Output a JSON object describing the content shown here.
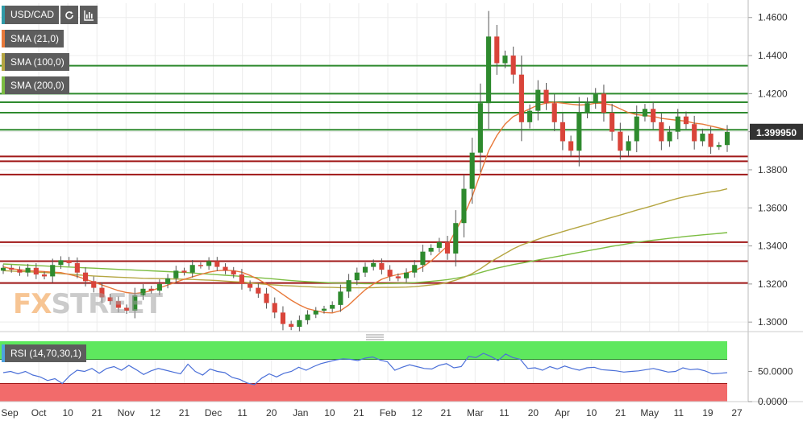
{
  "symbol": "USD/CAD",
  "indicators": [
    {
      "label": "SMA (21,0)",
      "color": "#e8793a"
    },
    {
      "label": "SMA (100,0)",
      "color": "#b5a642"
    },
    {
      "label": "SMA (200,0)",
      "color": "#7cbd42"
    }
  ],
  "rsi": {
    "label": "RSI (14,70,30,1)",
    "color": "#4a6fd8",
    "ticks": [
      "50.0000",
      "0.0000"
    ],
    "upper": 70,
    "lower": 30,
    "ylim": [
      0,
      100
    ],
    "values": [
      48,
      50,
      46,
      50,
      44,
      41,
      35,
      38,
      30,
      43,
      52,
      50,
      55,
      47,
      55,
      58,
      52,
      60,
      53,
      45,
      51,
      55,
      52,
      49,
      46,
      62,
      50,
      44,
      54,
      50,
      48,
      40,
      37,
      31,
      28,
      39,
      46,
      41,
      47,
      50,
      57,
      52,
      58,
      63,
      66,
      69,
      71,
      70,
      68,
      72,
      74,
      69,
      66,
      52,
      57,
      61,
      58,
      55,
      54,
      60,
      63,
      56,
      58,
      75,
      73,
      80,
      75,
      68,
      79,
      73,
      70,
      55,
      56,
      52,
      58,
      54,
      59,
      55,
      52,
      56,
      57,
      53,
      52,
      51,
      49,
      50,
      51,
      53,
      55,
      52,
      49,
      50,
      56,
      53,
      54,
      51,
      46,
      47,
      48
    ]
  },
  "watermark": "FXSTREET",
  "chart_data": {
    "type": "candlestick",
    "title": "USD/CAD",
    "ylim": [
      1.295,
      1.4675
    ],
    "y_ticks": [
      "1.4600",
      "1.4400",
      "1.4200",
      "1.4000",
      "1.3800",
      "1.3600",
      "1.3400",
      "1.3200",
      "1.3000"
    ],
    "x_ticks": [
      "Sep",
      "Oct",
      "10",
      "21",
      "Nov",
      "12",
      "21",
      "Dec",
      "11",
      "20",
      "Jan",
      "10",
      "21",
      "Feb",
      "12",
      "21",
      "Mar",
      "11",
      "20",
      "Apr",
      "10",
      "21",
      "May",
      "11",
      "19",
      "27"
    ],
    "current_price": "1.399950",
    "closes": [
      1.3285,
      1.3275,
      1.326,
      1.3285,
      1.325,
      1.324,
      1.33,
      1.3325,
      1.331,
      1.326,
      1.3215,
      1.318,
      1.313,
      1.311,
      1.3075,
      1.306,
      1.314,
      1.3175,
      1.3165,
      1.32,
      1.323,
      1.327,
      1.326,
      1.33,
      1.3295,
      1.332,
      1.329,
      1.327,
      1.325,
      1.32,
      1.318,
      1.315,
      1.31,
      1.305,
      1.299,
      1.2975,
      1.301,
      1.304,
      1.306,
      1.307,
      1.309,
      1.316,
      1.322,
      1.326,
      1.329,
      1.331,
      1.3275,
      1.324,
      1.323,
      1.326,
      1.33,
      1.337,
      1.339,
      1.342,
      1.336,
      1.352,
      1.37,
      1.389,
      1.415,
      1.45,
      1.436,
      1.44,
      1.43,
      1.405,
      1.411,
      1.422,
      1.415,
      1.405,
      1.395,
      1.39,
      1.41,
      1.415,
      1.42,
      1.41,
      1.4,
      1.39,
      1.395,
      1.408,
      1.412,
      1.405,
      1.395,
      1.4,
      1.408,
      1.404,
      1.395,
      1.399,
      1.392,
      1.393,
      1.3999
    ],
    "hlines": [
      {
        "price": 1.4347,
        "color": "#2e8a2e"
      },
      {
        "price": 1.42,
        "color": "#2e8a2e"
      },
      {
        "price": 1.4155,
        "color": "#2e8a2e"
      },
      {
        "price": 1.41,
        "color": "#2e8a2e"
      },
      {
        "price": 1.401,
        "color": "#2e8a2e"
      },
      {
        "price": 1.387,
        "color": "#a01818"
      },
      {
        "price": 1.3845,
        "color": "#a01818"
      },
      {
        "price": 1.3775,
        "color": "#a01818"
      },
      {
        "price": 1.342,
        "color": "#a01818"
      },
      {
        "price": 1.332,
        "color": "#a01818"
      },
      {
        "price": 1.3205,
        "color": "#a01818"
      }
    ],
    "sma21": [
      1.329,
      1.328,
      1.3275,
      1.327,
      1.3268,
      1.3265,
      1.3262,
      1.326,
      1.325,
      1.324,
      1.3225,
      1.321,
      1.3195,
      1.318,
      1.3165,
      1.3155,
      1.315,
      1.3155,
      1.3165,
      1.318,
      1.3195,
      1.321,
      1.3225,
      1.3238,
      1.325,
      1.3262,
      1.327,
      1.3272,
      1.327,
      1.3262,
      1.3245,
      1.3225,
      1.32,
      1.3175,
      1.3145,
      1.3115,
      1.309,
      1.307,
      1.306,
      1.305,
      1.3048,
      1.306,
      1.309,
      1.313,
      1.317,
      1.32,
      1.3225,
      1.324,
      1.325,
      1.3258,
      1.327,
      1.329,
      1.332,
      1.336,
      1.34,
      1.348,
      1.356,
      1.366,
      1.378,
      1.39,
      1.398,
      1.404,
      1.408,
      1.41,
      1.412,
      1.414,
      1.415,
      1.4155,
      1.415,
      1.4145,
      1.414,
      1.4142,
      1.415,
      1.4148,
      1.414,
      1.412,
      1.41,
      1.409,
      1.4085,
      1.408,
      1.407,
      1.4065,
      1.406,
      1.4055,
      1.4045,
      1.404,
      1.403,
      1.402,
      1.401
    ],
    "sma100": [
      1.327,
      1.3268,
      1.3266,
      1.3264,
      1.3262,
      1.326,
      1.3258,
      1.3255,
      1.3252,
      1.3248,
      1.3245,
      1.3242,
      1.324,
      1.3238,
      1.3236,
      1.3234,
      1.3232,
      1.323,
      1.3229,
      1.3228,
      1.3227,
      1.3226,
      1.3225,
      1.3224,
      1.3222,
      1.322,
      1.3218,
      1.3215,
      1.3212,
      1.321,
      1.3206,
      1.3202,
      1.3198,
      1.3195,
      1.3192,
      1.319,
      1.3188,
      1.3186,
      1.3184,
      1.3183,
      1.3182,
      1.3181,
      1.318,
      1.318,
      1.318,
      1.3181,
      1.3182,
      1.3182,
      1.3183,
      1.3184,
      1.3186,
      1.319,
      1.3195,
      1.32,
      1.3208,
      1.322,
      1.3235,
      1.3255,
      1.328,
      1.331,
      1.3335,
      1.336,
      1.3385,
      1.3405,
      1.342,
      1.3435,
      1.345,
      1.3462,
      1.3475,
      1.3488,
      1.35,
      1.3512,
      1.3525,
      1.3538,
      1.355,
      1.3562,
      1.3575,
      1.3588,
      1.36,
      1.3612,
      1.3625,
      1.3638,
      1.365,
      1.366,
      1.3668,
      1.3676,
      1.3684,
      1.369,
      1.37
    ],
    "sma200": [
      1.3305,
      1.3303,
      1.3301,
      1.3299,
      1.3297,
      1.3295,
      1.3293,
      1.3291,
      1.3289,
      1.3287,
      1.3285,
      1.3283,
      1.3281,
      1.3279,
      1.3277,
      1.3275,
      1.3273,
      1.3271,
      1.3269,
      1.3267,
      1.3265,
      1.3263,
      1.3261,
      1.3258,
      1.3255,
      1.3252,
      1.3249,
      1.3246,
      1.3243,
      1.324,
      1.3237,
      1.3233,
      1.323,
      1.3226,
      1.3222,
      1.3218,
      1.3215,
      1.3212,
      1.321,
      1.3208,
      1.3206,
      1.3205,
      1.3204,
      1.3203,
      1.3202,
      1.3202,
      1.3202,
      1.3203,
      1.3204,
      1.3205,
      1.3207,
      1.321,
      1.3214,
      1.3218,
      1.3223,
      1.323,
      1.3238,
      1.3248,
      1.326,
      1.3272,
      1.3283,
      1.3293,
      1.3302,
      1.331,
      1.3318,
      1.3326,
      1.3334,
      1.3342,
      1.335,
      1.3358,
      1.3366,
      1.3374,
      1.3382,
      1.339,
      1.3398,
      1.3405,
      1.3412,
      1.3419,
      1.3425,
      1.343,
      1.3435,
      1.344,
      1.3445,
      1.345,
      1.3454,
      1.3458,
      1.3462,
      1.3466,
      1.347
    ]
  }
}
